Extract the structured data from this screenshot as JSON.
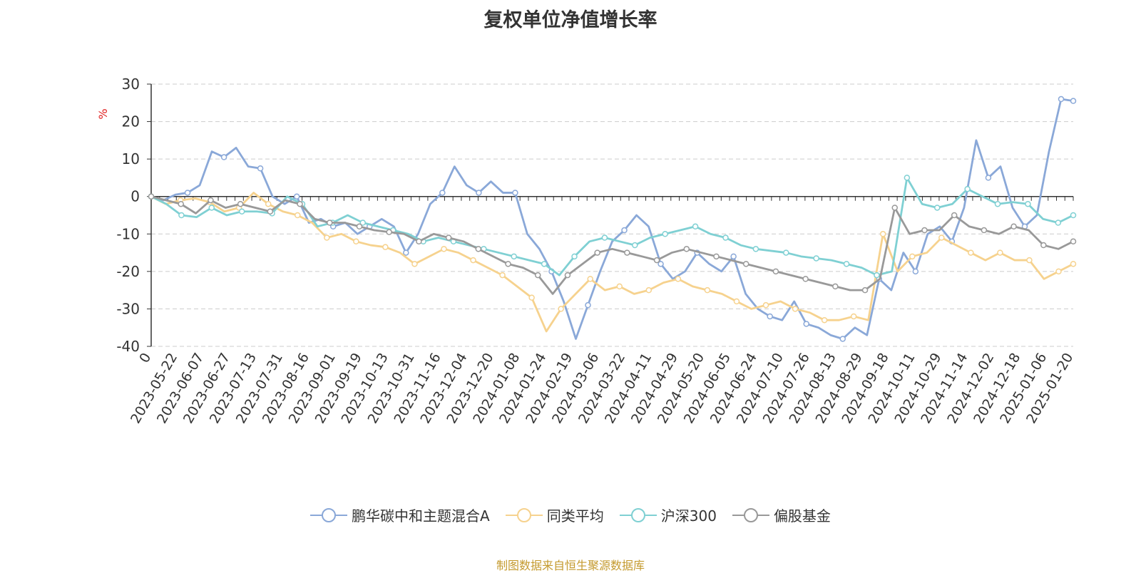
{
  "chart_data": {
    "type": "line",
    "title": "复权单位净值增长率",
    "ylabel": "%",
    "xlabel": "",
    "ylim": [
      -40,
      30
    ],
    "yticks": [
      30,
      20,
      10,
      0,
      -10,
      -20,
      -30,
      -40
    ],
    "grid": true,
    "legend_position": "bottom-center",
    "x_tick_labels": [
      "0",
      "2023-05-22",
      "2023-06-07",
      "2023-06-27",
      "2023-07-13",
      "2023-07-31",
      "2023-08-16",
      "2023-09-01",
      "2023-09-19",
      "2023-10-13",
      "2023-10-31",
      "2023-11-16",
      "2023-12-04",
      "2023-12-20",
      "2024-01-08",
      "2024-01-24",
      "2024-02-19",
      "2024-03-06",
      "2024-03-22",
      "2024-04-11",
      "2024-04-29",
      "2024-05-20",
      "2024-06-05",
      "2024-06-24",
      "2024-07-10",
      "2024-07-26",
      "2024-08-13",
      "2024-08-29",
      "2024-09-18",
      "2024-10-11",
      "2024-10-29",
      "2024-11-14",
      "2024-12-02",
      "2024-12-18",
      "2025-01-06",
      "2025-01-20"
    ],
    "series": [
      {
        "name": "鹏华碳中和主题混合A",
        "color": "#8aa8d8",
        "values": [
          0,
          -1,
          0.5,
          1,
          3,
          12,
          10.5,
          13,
          8,
          7.5,
          0,
          -2,
          0,
          -7,
          -6,
          -8,
          -7,
          -10,
          -8,
          -6,
          -8,
          -15,
          -10,
          -2,
          1,
          8,
          3,
          1,
          4,
          1,
          1,
          -10,
          -14,
          -20,
          -28,
          -38,
          -29,
          -20,
          -12,
          -9,
          -5,
          -8,
          -18,
          -22,
          -20,
          -15,
          -18,
          -20,
          -16,
          -26,
          -30,
          -32,
          -33,
          -28,
          -34,
          -35,
          -37,
          -38,
          -35,
          -37,
          -22,
          -25,
          -15,
          -20,
          -10,
          -8,
          -12,
          -3,
          15,
          5,
          8,
          -3,
          -8,
          -5,
          12,
          26,
          25.5
        ]
      },
      {
        "name": "同类平均",
        "color": "#f6d28e",
        "values": [
          0,
          -2,
          -1,
          -0.5,
          -1.5,
          -4,
          -3,
          1,
          -2,
          -4,
          -5,
          -7,
          -11,
          -10,
          -12,
          -13,
          -13.5,
          -15,
          -18,
          -16,
          -14,
          -15,
          -17,
          -19,
          -21,
          -24,
          -27,
          -36,
          -30,
          -26,
          -22,
          -25,
          -24,
          -26,
          -25,
          -23,
          -22,
          -24,
          -25,
          -26,
          -28,
          -30,
          -29,
          -28,
          -30,
          -31,
          -33,
          -33,
          -32,
          -33,
          -10,
          -20,
          -16,
          -15,
          -11,
          -13,
          -15,
          -17,
          -15,
          -17,
          -17,
          -22,
          -20,
          -18
        ]
      },
      {
        "name": "沪深300",
        "color": "#7fd0d3",
        "values": [
          0,
          -2,
          -5,
          -5.5,
          -3,
          -5,
          -4,
          -4,
          -4.5,
          0,
          -2,
          -8,
          -7,
          -5,
          -7,
          -8,
          -9,
          -10,
          -12,
          -11,
          -12,
          -13,
          -14,
          -15,
          -16,
          -17,
          -18,
          -21,
          -16,
          -12,
          -11,
          -12,
          -13,
          -11,
          -10,
          -9,
          -8,
          -10,
          -11,
          -13,
          -14,
          -14.5,
          -15,
          -16,
          -16.5,
          -17,
          -18,
          -19,
          -21,
          -20,
          5,
          -2,
          -3,
          -2,
          2,
          0,
          -2,
          -1.5,
          -2,
          -6,
          -7,
          -5
        ]
      },
      {
        "name": "偏股基金",
        "color": "#999999",
        "values": [
          0,
          -1,
          -2,
          -4.5,
          -1,
          -3,
          -2,
          -3,
          -4,
          -1,
          -2,
          -6,
          -7,
          -7,
          -8,
          -9,
          -9.5,
          -10,
          -12,
          -10,
          -11,
          -12,
          -14,
          -16,
          -18,
          -19,
          -21,
          -26,
          -21,
          -18,
          -15,
          -14,
          -15,
          -16,
          -17,
          -15,
          -14,
          -15,
          -16,
          -17,
          -18,
          -19,
          -20,
          -21,
          -22,
          -23,
          -24,
          -25,
          -25,
          -22,
          -3,
          -10,
          -9,
          -9,
          -5,
          -8,
          -9,
          -10,
          -8,
          -9,
          -13,
          -14,
          -12
        ]
      }
    ]
  },
  "source_note": "制图数据来自恒生聚源数据库"
}
